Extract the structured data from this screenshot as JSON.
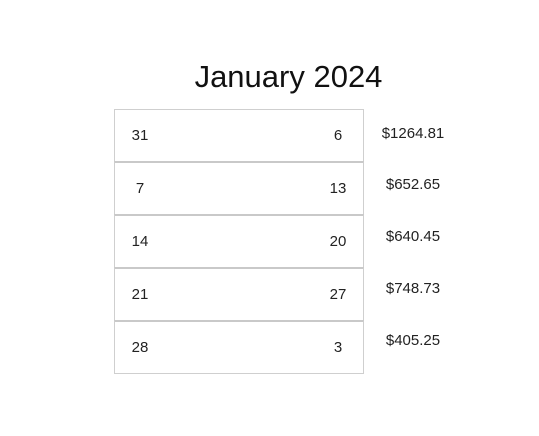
{
  "header": {
    "title": "January 2024"
  },
  "weeks": [
    {
      "start_day": "31",
      "end_day": "6",
      "amount": "$1264.81"
    },
    {
      "start_day": "7",
      "end_day": "13",
      "amount": "$652.65"
    },
    {
      "start_day": "14",
      "end_day": "20",
      "amount": "$640.45"
    },
    {
      "start_day": "21",
      "end_day": "27",
      "amount": "$748.73"
    },
    {
      "start_day": "28",
      "end_day": "3",
      "amount": "$405.25"
    }
  ],
  "colors": {
    "border": "#cfcfcf",
    "text": "#222222",
    "background": "#ffffff"
  }
}
